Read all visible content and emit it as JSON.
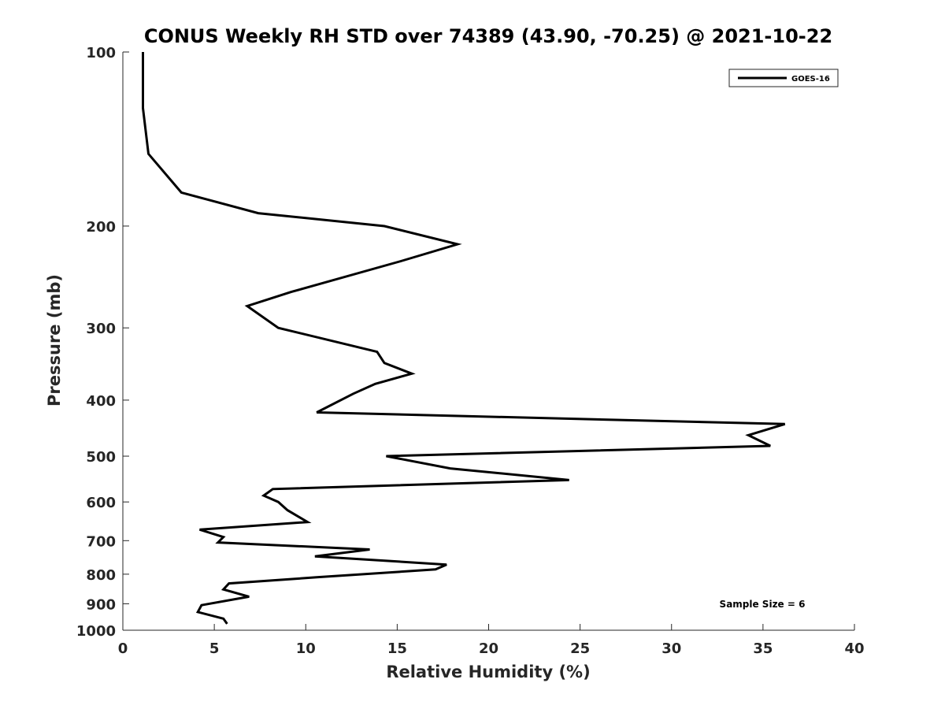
{
  "chart_data": {
    "type": "line",
    "title": "CONUS Weekly RH STD over 74389 (43.90, -70.25) @ 2021-10-22",
    "xlabel": "Relative Humidity (%)",
    "ylabel": "Pressure (mb)",
    "xlim": [
      0,
      40
    ],
    "ylim": [
      100,
      1000
    ],
    "y_scale": "log",
    "y_reversed": true,
    "grid": false,
    "legend_position": "top-right",
    "x_ticks": [
      "0",
      "5",
      "10",
      "15",
      "20",
      "25",
      "30",
      "35",
      "40"
    ],
    "y_ticks": [
      "100",
      "200",
      "300",
      "400",
      "500",
      "600",
      "700",
      "800",
      "900",
      "1000"
    ],
    "series": [
      {
        "name": "GOES-16",
        "color": "#000000",
        "points": [
          [
            1.1,
            100
          ],
          [
            1.1,
            125
          ],
          [
            1.4,
            150
          ],
          [
            3.2,
            175
          ],
          [
            7.4,
            190
          ],
          [
            14.3,
            200
          ],
          [
            18.3,
            215
          ],
          [
            15.2,
            230
          ],
          [
            9.2,
            260
          ],
          [
            6.8,
            275
          ],
          [
            8.5,
            300
          ],
          [
            13.9,
            330
          ],
          [
            14.3,
            345
          ],
          [
            15.8,
            360
          ],
          [
            13.8,
            375
          ],
          [
            12.6,
            390
          ],
          [
            10.6,
            420
          ],
          [
            36.2,
            440
          ],
          [
            34.2,
            460
          ],
          [
            35.4,
            480
          ],
          [
            14.4,
            500
          ],
          [
            17.9,
            525
          ],
          [
            24.4,
            550
          ],
          [
            8.2,
            570
          ],
          [
            7.7,
            585
          ],
          [
            8.5,
            600
          ],
          [
            9.0,
            620
          ],
          [
            10.1,
            650
          ],
          [
            4.2,
            670
          ],
          [
            5.5,
            690
          ],
          [
            5.2,
            705
          ],
          [
            13.5,
            725
          ],
          [
            10.5,
            745
          ],
          [
            17.7,
            770
          ],
          [
            17.1,
            785
          ],
          [
            10.6,
            810
          ],
          [
            5.8,
            830
          ],
          [
            5.5,
            850
          ],
          [
            6.9,
            875
          ],
          [
            4.3,
            905
          ],
          [
            4.1,
            930
          ],
          [
            5.5,
            955
          ],
          [
            5.7,
            975
          ]
        ]
      }
    ],
    "annotations": [
      "Sample Size = 6"
    ]
  }
}
